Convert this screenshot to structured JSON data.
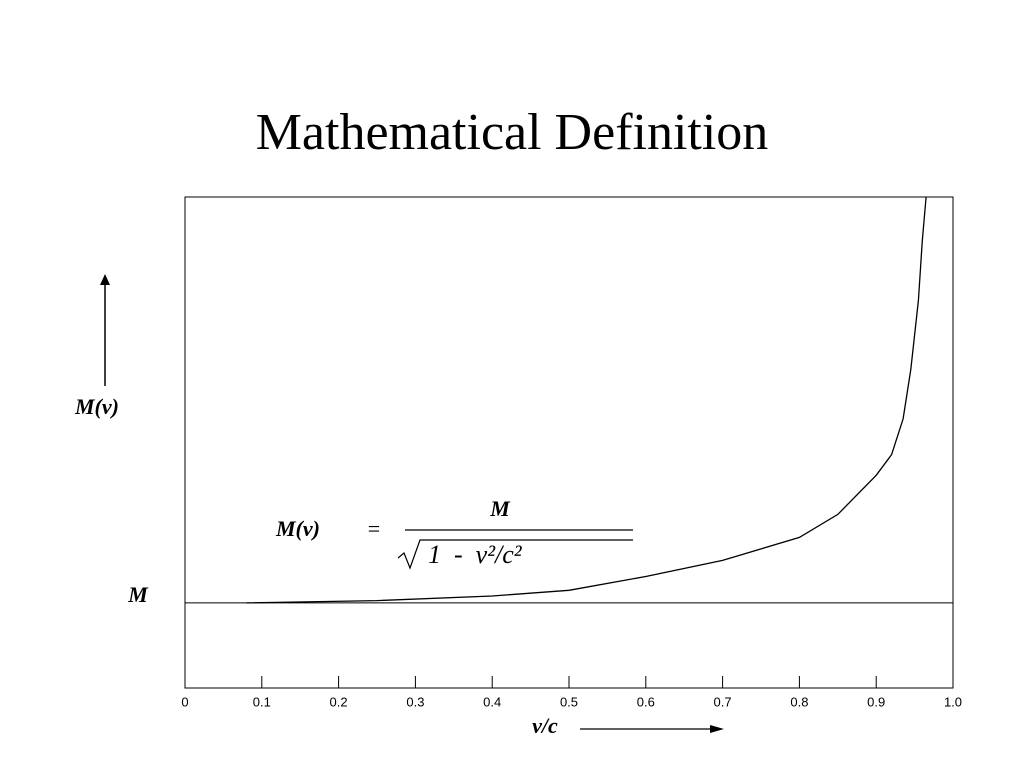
{
  "chart_data": {
    "type": "line",
    "title": "Mathematical Definition",
    "x": [
      0.08,
      0.25,
      0.4,
      0.5,
      0.6,
      0.7,
      0.8,
      0.85,
      0.9,
      0.92,
      0.935,
      0.945,
      0.955,
      0.96,
      0.965
    ],
    "values": [
      1.0,
      1.02,
      1.06,
      1.11,
      1.23,
      1.37,
      1.57,
      1.77,
      2.11,
      2.29,
      2.6,
      3.03,
      3.63,
      4.15,
      4.53
    ],
    "color": "#000000",
    "xlim": [
      0,
      1
    ],
    "ylim": [
      0.26,
      4.53
    ],
    "xticks": [
      0,
      0.1,
      0.2,
      0.3,
      0.4,
      0.5,
      0.6,
      0.7,
      0.8,
      0.9,
      {
        "value": 1,
        "label": "1.0"
      }
    ],
    "x_label": "v/c",
    "y_label": "M(v)",
    "reference_line": {
      "value": 1,
      "label": "M"
    },
    "formula": {
      "lhs": "M(v)",
      "equals": "=",
      "numerator": "M",
      "denominator": "1  -  v²/c²"
    }
  }
}
